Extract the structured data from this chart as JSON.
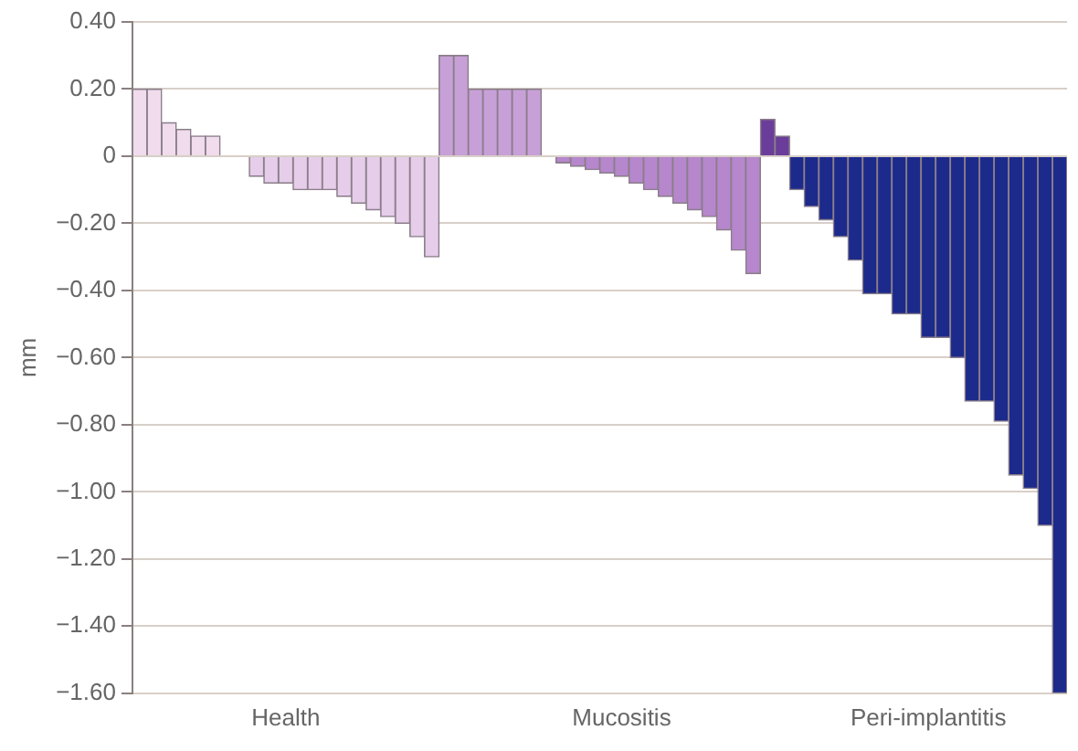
{
  "chart_data": {
    "type": "bar",
    "ylabel": "mm",
    "categories": [
      null,
      null,
      null,
      null,
      null,
      null,
      null,
      null,
      null,
      null,
      "Health",
      null,
      null,
      null,
      null,
      null,
      null,
      null,
      null,
      null,
      null,
      null,
      null,
      null,
      null,
      null,
      null,
      null,
      null,
      null,
      null,
      null,
      null,
      "Mucositis",
      null,
      null,
      null,
      null,
      null,
      null,
      null,
      null,
      null,
      null,
      null,
      null,
      null,
      null,
      null,
      null,
      null,
      null,
      null,
      null,
      "Peri-implantitis",
      null,
      null,
      null,
      null,
      null,
      null,
      null,
      null,
      null
    ],
    "values": [
      0.2,
      0.2,
      0.1,
      0.08,
      0.06,
      0.06,
      0,
      0,
      -0.06,
      -0.08,
      -0.08,
      -0.1,
      -0.1,
      -0.1,
      -0.12,
      -0.14,
      -0.16,
      -0.18,
      -0.2,
      -0.24,
      -0.3,
      0.3,
      0.3,
      0.2,
      0.2,
      0.2,
      0.2,
      0.2,
      0,
      -0.02,
      -0.03,
      -0.04,
      -0.05,
      -0.06,
      -0.08,
      -0.1,
      -0.12,
      -0.14,
      -0.16,
      -0.18,
      -0.22,
      -0.28,
      -0.35,
      0.11,
      0.06,
      -0.1,
      -0.15,
      -0.19,
      -0.24,
      -0.31,
      -0.41,
      -0.41,
      -0.47,
      -0.47,
      -0.54,
      -0.54,
      -0.6,
      -0.73,
      -0.73,
      -0.79,
      -0.95,
      -0.99,
      -1.1,
      -1.6
    ],
    "colors": [
      "#f0dcec",
      "#f0dcec",
      "#f0dcec",
      "#f0dcec",
      "#f0dcec",
      "#f0dcec",
      "#f0dcec",
      "#f0dcec",
      "#e6cdea",
      "#e6cdea",
      "#e6cdea",
      "#e6cdea",
      "#e6cdea",
      "#e6cdea",
      "#e6cdea",
      "#e6cdea",
      "#e6cdea",
      "#e6cdea",
      "#e6cdea",
      "#e6cdea",
      "#e6cdea",
      "#c8a0d8",
      "#c8a0d8",
      "#c8a0d8",
      "#c8a0d8",
      "#c8a0d8",
      "#c8a0d8",
      "#c8a0d8",
      "#c8a0d8",
      "#b687cc",
      "#b687cc",
      "#b687cc",
      "#b687cc",
      "#b687cc",
      "#b687cc",
      "#b687cc",
      "#b687cc",
      "#b687cc",
      "#b687cc",
      "#b687cc",
      "#b687cc",
      "#b687cc",
      "#b687cc",
      "#6a3d9a",
      "#6a3d9a",
      "#1c2a8c",
      "#1c2a8c",
      "#1c2a8c",
      "#1c2a8c",
      "#1c2a8c",
      "#1c2a8c",
      "#1c2a8c",
      "#1c2a8c",
      "#1c2a8c",
      "#1c2a8c",
      "#1c2a8c",
      "#1c2a8c",
      "#1c2a8c",
      "#1c2a8c",
      "#1c2a8c",
      "#1c2a8c",
      "#1c2a8c",
      "#1c2a8c",
      "#1c2a8c"
    ],
    "ylim": [
      -1.6,
      0.4
    ],
    "yticks": [
      {
        "value": 0.4,
        "label": "0.40"
      },
      {
        "value": 0.2,
        "label": "0.20"
      },
      0,
      {
        "value": -0.2,
        "label": "−0.20"
      },
      {
        "value": -0.4,
        "label": "−0.40"
      },
      {
        "value": -0.6,
        "label": "−0.60"
      },
      {
        "value": -0.8,
        "label": "−0.80"
      },
      {
        "value": -1,
        "label": "−1.00"
      },
      {
        "value": -1.2,
        "label": "−1.20"
      },
      {
        "value": -1.4,
        "label": "−1.40"
      },
      {
        "value": -1.6,
        "label": "−1.60"
      }
    ],
    "grid": "y",
    "legend": false
  }
}
